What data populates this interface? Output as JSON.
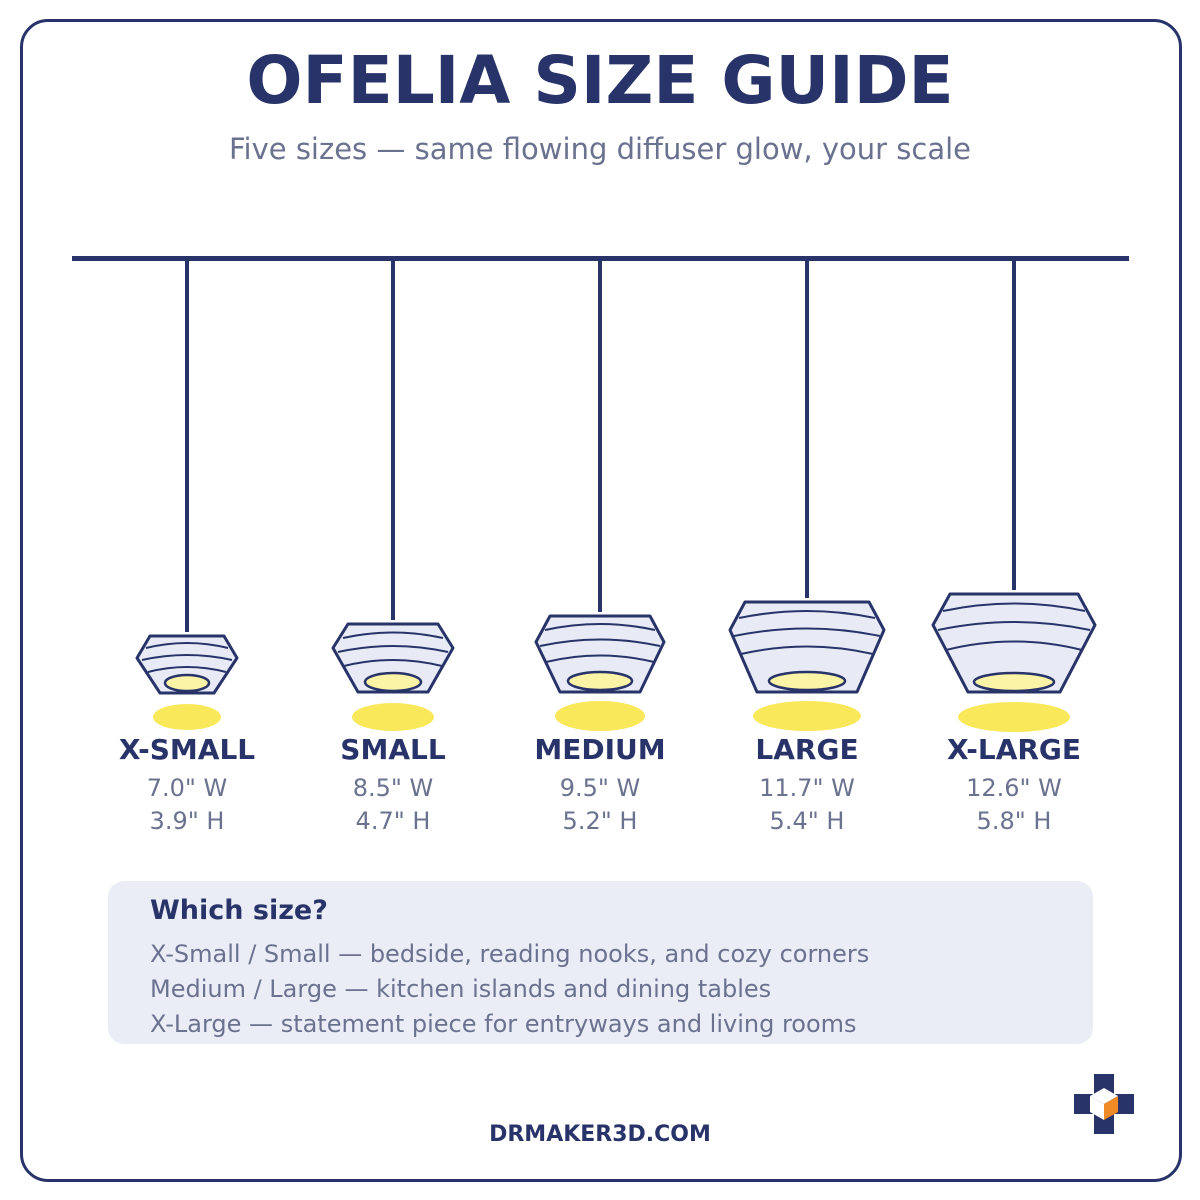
{
  "title": "OFELIA SIZE GUIDE",
  "subtitle": "Five sizes — same flowing diffuser glow, your scale",
  "sizes": [
    {
      "name": "X-SMALL",
      "width": "7.0\" W",
      "height": "3.9\" H"
    },
    {
      "name": "SMALL",
      "width": "8.5\" W",
      "height": "4.7\" H"
    },
    {
      "name": "MEDIUM",
      "width": "9.5\" W",
      "height": "5.2\" H"
    },
    {
      "name": "LARGE",
      "width": "11.7\" W",
      "height": "5.4\" H"
    },
    {
      "name": "X-LARGE",
      "width": "12.6\" W",
      "height": "5.8\" H"
    }
  ],
  "guide": {
    "title": "Which size?",
    "lines": [
      "X-Small / Small — bedside, reading nooks, and cozy corners",
      "Medium / Large — kitchen islands and dining tables",
      "X-Large — statement piece for entryways and living rooms"
    ]
  },
  "footer": "DRMAKER3D.COM",
  "colors": {
    "navy": "#283469",
    "text_gray": "#6b7290",
    "shade_fill": "#e8ebf6",
    "glow_yellow": "#f8e85a",
    "bulb_yellow": "#fbf3a6",
    "panel_bg": "#eaedf6",
    "logo_orange": "#f08a24"
  },
  "logo": {
    "icon": "cube-cross-logo-icon"
  }
}
